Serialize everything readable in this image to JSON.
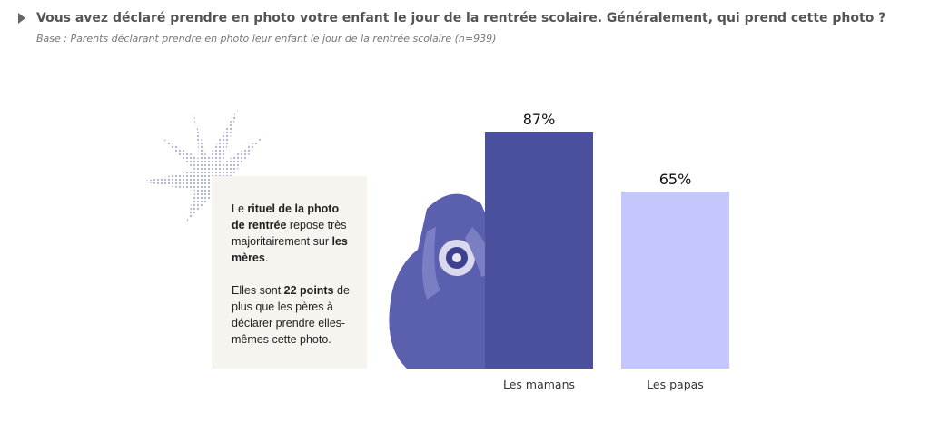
{
  "chart_data": {
    "type": "bar",
    "title": "Vous avez déclaré prendre en photo votre enfant le jour de la rentrée scolaire. Généralement, qui prend cette photo ?",
    "subtitle": "Base : Parents déclarant prendre en photo leur enfant le jour de la rentrée scolaire (n=939)",
    "categories": [
      "Les mamans",
      "Les papas"
    ],
    "values": [
      87,
      65
    ],
    "value_labels": [
      "87%",
      "65%"
    ],
    "colors": [
      "#4a4f9e",
      "#c4c7fc"
    ],
    "annotation": [
      [
        {
          "text": "Le ",
          "bold": false
        },
        {
          "text": "rituel de la photo de rentrée",
          "bold": true
        },
        {
          "text": " repose très majoritairement sur ",
          "bold": false
        },
        {
          "text": "les mères",
          "bold": true
        },
        {
          "text": ".",
          "bold": false
        }
      ],
      [
        {
          "text": "Elles sont ",
          "bold": false
        },
        {
          "text": "22 points",
          "bold": true
        },
        {
          "text": " de plus que les pères à déclarer prendre elles-mêmes cette photo.",
          "bold": false
        }
      ]
    ]
  }
}
